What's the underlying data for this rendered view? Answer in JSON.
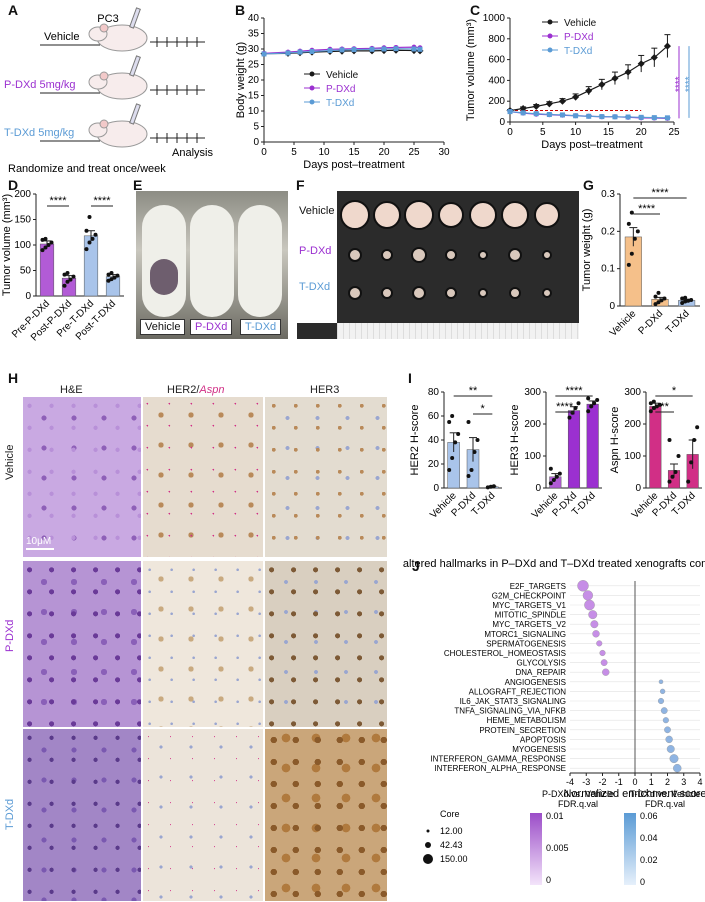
{
  "panel_labels": [
    "A",
    "B",
    "C",
    "D",
    "E",
    "F",
    "G",
    "H",
    "I",
    "J"
  ],
  "colors": {
    "vehicle": "#1a1a1a",
    "pdxd": "#9b30d0",
    "tdxd": "#5b9bd5",
    "vehicle_bar": "#f5c08a",
    "pdxd_bar": "#b25bd6",
    "tdxd_bar": "#a9c4ea",
    "aspn_bar": "#d12f86",
    "threshold": "#cc0000"
  },
  "panel_a": {
    "cell_line": "PC3",
    "arm_vehicle": "Vehicle",
    "arm_pdxd": "P-DXd 5mg/kg",
    "arm_tdxd": "T-DXd 5mg/kg",
    "analysis": "Analysis",
    "caption": "Randomize and treat once/week"
  },
  "chart_data": [
    {
      "id": "B",
      "type": "line",
      "xlabel": "Days post–treatment",
      "ylabel": "Body weight (g)",
      "xlim": [
        0,
        30
      ],
      "ylim": [
        0,
        40
      ],
      "xticks": [
        0,
        5,
        10,
        15,
        20,
        25,
        30
      ],
      "yticks": [
        0,
        5,
        10,
        15,
        20,
        25,
        30,
        35,
        40
      ],
      "x": [
        0,
        4,
        6,
        8,
        11,
        13,
        15,
        18,
        20,
        22,
        25,
        26
      ],
      "series": [
        {
          "name": "Vehicle",
          "values": [
            28.5,
            28.6,
            28.8,
            29.0,
            29.2,
            29.3,
            29.4,
            29.4,
            29.5,
            29.6,
            29.5,
            29.4
          ]
        },
        {
          "name": "P-DXd",
          "values": [
            28.6,
            29.0,
            29.3,
            29.6,
            29.9,
            30.0,
            30.1,
            30.2,
            30.4,
            30.5,
            30.6,
            30.4
          ]
        },
        {
          "name": "T-DXd",
          "values": [
            28.4,
            28.7,
            29.0,
            29.2,
            29.5,
            29.7,
            29.8,
            29.9,
            30.0,
            30.1,
            30.0,
            29.9
          ]
        }
      ],
      "legend": "middle-right"
    },
    {
      "id": "C",
      "type": "line",
      "xlabel": "Days post–treatment",
      "ylabel": "Tumor volume (mm³)",
      "xlim": [
        0,
        25
      ],
      "ylim": [
        0,
        1000
      ],
      "xticks": [
        0,
        5,
        10,
        15,
        20,
        25
      ],
      "yticks": [
        0,
        200,
        400,
        600,
        800,
        1000
      ],
      "x": [
        0,
        2,
        4,
        6,
        8,
        10,
        12,
        14,
        16,
        18,
        20,
        22,
        24
      ],
      "series": [
        {
          "name": "Vehicle",
          "values": [
            110,
            130,
            150,
            175,
            200,
            240,
            300,
            360,
            420,
            480,
            560,
            620,
            730
          ],
          "err": [
            10,
            15,
            18,
            20,
            25,
            30,
            40,
            50,
            60,
            70,
            80,
            90,
            110
          ]
        },
        {
          "name": "P-DXd",
          "values": [
            100,
            85,
            75,
            70,
            65,
            60,
            55,
            50,
            50,
            45,
            40,
            38,
            35
          ],
          "err": [
            8,
            8,
            7,
            7,
            6,
            6,
            6,
            5,
            5,
            5,
            5,
            4,
            4
          ]
        },
        {
          "name": "T-DXd",
          "values": [
            100,
            88,
            80,
            72,
            68,
            60,
            55,
            52,
            50,
            48,
            45,
            42,
            40
          ],
          "err": [
            8,
            8,
            7,
            7,
            6,
            6,
            6,
            5,
            5,
            5,
            5,
            4,
            4
          ]
        }
      ],
      "threshold": 110,
      "significance": [
        "****",
        "****"
      ],
      "legend": "top-left"
    },
    {
      "id": "D",
      "type": "bar",
      "ylabel": "Tumor volume (mm³)",
      "ylim": [
        0,
        200
      ],
      "yticks": [
        0,
        50,
        100,
        150,
        200
      ],
      "categories": [
        "Pre-P-DXd",
        "Post-P-DXd",
        "Pre-T-DXd",
        "Post-T-DXd"
      ],
      "values": [
        102,
        35,
        118,
        38
      ],
      "err": [
        6,
        5,
        10,
        4
      ],
      "points": [
        [
          90,
          95,
          100,
          105,
          110,
          112
        ],
        [
          20,
          28,
          32,
          38,
          42,
          45
        ],
        [
          92,
          105,
          112,
          120,
          128,
          155
        ],
        [
          30,
          33,
          36,
          40,
          42,
          45
        ]
      ],
      "significance": [
        "****",
        "****"
      ]
    },
    {
      "id": "G",
      "type": "bar",
      "ylabel": "Tumor weight (g)",
      "ylim": [
        0,
        0.3
      ],
      "yticks": [
        0.0,
        0.1,
        0.2,
        0.3
      ],
      "categories": [
        "Vehicle",
        "P-DXd",
        "T-DXd"
      ],
      "values": [
        0.185,
        0.018,
        0.015
      ],
      "err": [
        0.025,
        0.005,
        0.003
      ],
      "points": [
        [
          0.11,
          0.14,
          0.18,
          0.2,
          0.22,
          0.25
        ],
        [
          0.005,
          0.01,
          0.015,
          0.02,
          0.025,
          0.035
        ],
        [
          0.008,
          0.012,
          0.014,
          0.016,
          0.02,
          0.022
        ]
      ],
      "significance": [
        "****",
        "****"
      ]
    },
    {
      "id": "I1",
      "type": "bar",
      "ylabel": "HER2 H-score",
      "ylim": [
        0,
        80
      ],
      "yticks": [
        0,
        20,
        40,
        60,
        80
      ],
      "categories": [
        "Vehicle",
        "P-DXd",
        "T-DXd"
      ],
      "values": [
        38,
        32,
        1
      ],
      "err": [
        8,
        10,
        0.5
      ],
      "points": [
        [
          15,
          25,
          38,
          45,
          55,
          60
        ],
        [
          10,
          15,
          30,
          40,
          55
        ],
        [
          0.5,
          1,
          1.5
        ]
      ],
      "significance": [
        "**",
        "*"
      ]
    },
    {
      "id": "I2",
      "type": "bar",
      "ylabel": "HER3 H-score",
      "ylim": [
        0,
        300
      ],
      "yticks": [
        0,
        100,
        200,
        300
      ],
      "categories": [
        "Vehicle",
        "P-DXd",
        "T-DXd"
      ],
      "values": [
        35,
        242,
        262
      ],
      "err": [
        10,
        12,
        10
      ],
      "points": [
        [
          15,
          25,
          35,
          45,
          60
        ],
        [
          220,
          235,
          250,
          265
        ],
        [
          240,
          255,
          265,
          275,
          280
        ]
      ],
      "significance": [
        "****",
        "****"
      ]
    },
    {
      "id": "I3",
      "type": "bar",
      "ylabel": "Aspn H-score",
      "ylim": [
        0,
        300
      ],
      "yticks": [
        0,
        100,
        200,
        300
      ],
      "categories": [
        "Vehicle",
        "P-DXd",
        "T-DXd"
      ],
      "values": [
        255,
        55,
        105
      ],
      "err": [
        10,
        20,
        45
      ],
      "points": [
        [
          240,
          250,
          255,
          260,
          265,
          270
        ],
        [
          20,
          35,
          50,
          100,
          150
        ],
        [
          20,
          80,
          150,
          190
        ]
      ],
      "significance": [
        "**",
        "*"
      ]
    },
    {
      "id": "J",
      "type": "scatter",
      "title": "Top altered hallmarks in P–DXd and T–DXd treated xenografts compared to vehicle",
      "xlabel": "Normalized enrichment score",
      "xlim": [
        -4,
        4
      ],
      "xticks": [
        -4,
        -3,
        -2,
        -1,
        0,
        1,
        2,
        3,
        4
      ],
      "categories": [
        "E2F_TARGETS",
        "G2M_CHECKPOINT",
        "MYC_TARGETS_V1",
        "MITOTIC_SPINDLE",
        "MYC_TARGETS_V2",
        "MTORC1_SIGNALING",
        "SPERMATOGENESIS",
        "CHOLESTEROL_HOMEOSTASIS",
        "GLYCOLYSIS",
        "DNA_REPAIR",
        "ANGIOGENESIS",
        "ALLOGRAFT_REJECTION",
        "IL6_JAK_STAT3_SIGNALING",
        "TNFA_SIGNALING_VIA_NFKB",
        "HEME_METABOLISM",
        "PROTEIN_SECRETION",
        "APOPTOSIS",
        "MYOGENESIS",
        "INTERFERON_GAMMA_RESPONSE",
        "INTERFERON_ALPHA_RESPONSE"
      ],
      "series": [
        {
          "name": "P-DXd vs. Vehicle",
          "values": [
            -3.2,
            -2.9,
            -2.8,
            -2.6,
            -2.5,
            -2.4,
            -2.2,
            -2.0,
            -1.9,
            -1.8,
            null,
            null,
            null,
            null,
            null,
            null,
            null,
            null,
            null,
            null
          ],
          "size": [
            150,
            120,
            130,
            90,
            70,
            60,
            40,
            40,
            50,
            60,
            null,
            null,
            null,
            null,
            null,
            null,
            null,
            null,
            null,
            null
          ]
        },
        {
          "name": "T-DXd vs. Vehicle",
          "values": [
            null,
            null,
            null,
            null,
            null,
            null,
            null,
            null,
            null,
            null,
            1.6,
            1.7,
            1.6,
            1.8,
            1.9,
            2.0,
            2.1,
            2.2,
            2.4,
            2.6
          ],
          "size": [
            null,
            null,
            null,
            null,
            null,
            null,
            null,
            null,
            null,
            null,
            20,
            30,
            40,
            50,
            40,
            50,
            60,
            70,
            90,
            80
          ]
        }
      ],
      "legend_core_title": "Core",
      "legend_core": [
        "12.00",
        "42.43",
        "150.00"
      ],
      "legend_p_title": "P-DXd vs. Vehicle",
      "legend_t_title": "T-DXd vs. Vehicle",
      "legend_fdr": "FDR.q.val",
      "legend_p_ticks": [
        "0.01",
        "0.005",
        "0"
      ],
      "legend_t_ticks": [
        "0.06",
        "0.04",
        "0.02",
        "0"
      ]
    }
  ],
  "panel_e": {
    "labels": [
      "Vehicle",
      "P-DXd",
      "T-DXd"
    ]
  },
  "panel_f": {
    "rows": [
      "Vehicle",
      "P-DXd",
      "T-DXd"
    ]
  },
  "panel_h": {
    "cols": [
      "H&E",
      "HER2/",
      "Aspn",
      "HER3"
    ],
    "rows": [
      "Vehicle",
      "P-DXd",
      "T-DXd"
    ],
    "scale": "10μM"
  }
}
